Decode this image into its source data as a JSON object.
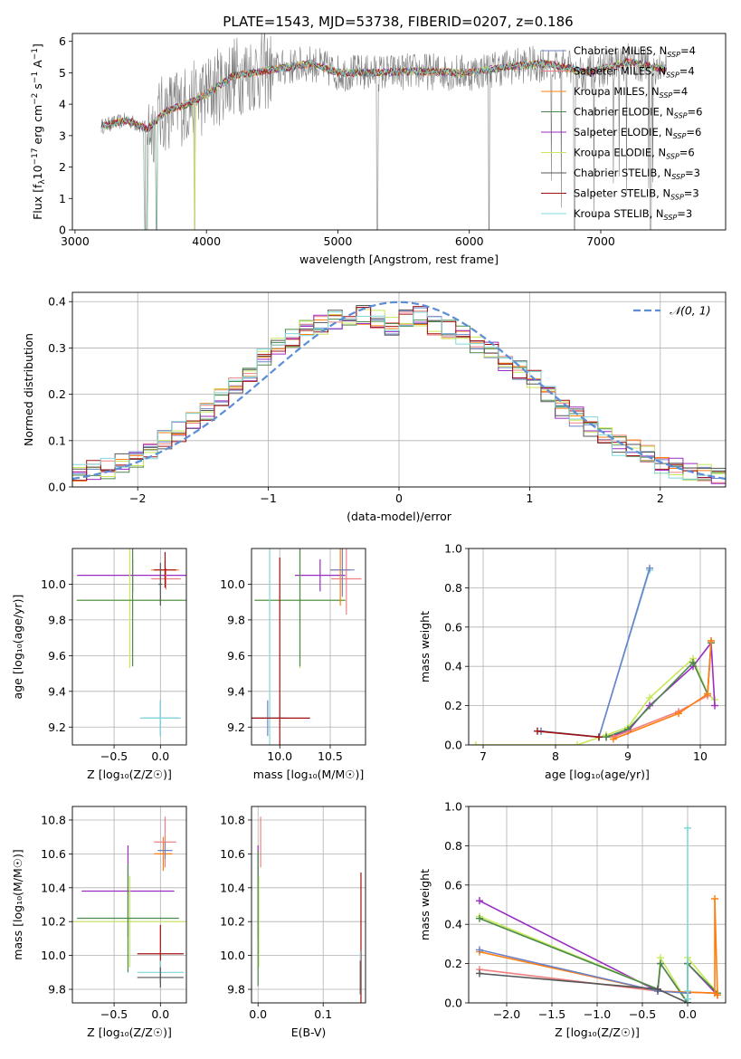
{
  "figure_title": "PLATE=1543, MJD=53738, FIBERID=0207, z=0.186",
  "colors": {
    "chabrier_miles": "#6b82c8",
    "salpeter_miles": "#f08080",
    "kroupa_miles": "#ff7f0e",
    "chabrier_elodie": "#4a8a4a",
    "salpeter_elodie": "#9a2cc4",
    "kroupa_elodie": "#c8e85a",
    "chabrier_stelib": "#555555",
    "salpeter_stelib": "#a01010",
    "kroupa_stelib": "#80d8d8",
    "data_spectrum": "#808080",
    "gaussian": "#5b8dd9"
  },
  "chart_data": [
    {
      "type": "line",
      "id": "spectrum",
      "title": "PLATE=1543, MJD=53738, FIBERID=0207, z=0.186",
      "xlabel": "wavelength [Angstrom, rest frame]",
      "ylabel_parts": [
        "Flux [f",
        "λ",
        "10",
        "−17",
        " erg cm",
        "−2",
        " s",
        "−1",
        " A",
        "−1",
        "]"
      ],
      "xlim": [
        2980,
        7950
      ],
      "ylim": [
        0,
        6.25
      ],
      "xticks": [
        3000,
        4000,
        5000,
        6000,
        7000
      ],
      "yticks": [
        0,
        1,
        2,
        3,
        4,
        5,
        6
      ],
      "grid": false,
      "legend_position": "upper-right",
      "series": [
        {
          "label": "Chabrier MILES, N",
          "sub": "SSP",
          "suffix": "=4",
          "color_key": "chabrier_miles"
        },
        {
          "label": "Salpeter MILES, N",
          "sub": "SSP",
          "suffix": "=4",
          "color_key": "salpeter_miles"
        },
        {
          "label": "Kroupa MILES, N",
          "sub": "SSP",
          "suffix": "=4",
          "color_key": "kroupa_miles"
        },
        {
          "label": "Chabrier ELODIE, N",
          "sub": "SSP",
          "suffix": "=6",
          "color_key": "chabrier_elodie"
        },
        {
          "label": "Salpeter ELODIE, N",
          "sub": "SSP",
          "suffix": "=6",
          "color_key": "salpeter_elodie"
        },
        {
          "label": "Kroupa ELODIE, N",
          "sub": "SSP",
          "suffix": "=6",
          "color_key": "kroupa_elodie"
        },
        {
          "label": "Chabrier STELIB, N",
          "sub": "SSP",
          "suffix": "=3",
          "color_key": "chabrier_stelib"
        },
        {
          "label": "Salpeter STELIB, N",
          "sub": "SSP",
          "suffix": "=3",
          "color_key": "salpeter_stelib"
        },
        {
          "label": "Kroupa STELIB, N",
          "sub": "SSP",
          "suffix": "=3",
          "color_key": "kroupa_stelib"
        }
      ],
      "continuum": {
        "x": [
          3200,
          3400,
          3550,
          3700,
          3850,
          4000,
          4200,
          4500,
          4800,
          5000,
          5300,
          5600,
          6000,
          6300,
          6600,
          6900,
          7200,
          7500
        ],
        "y": [
          3.3,
          3.5,
          3.2,
          3.8,
          4.0,
          4.3,
          4.9,
          5.1,
          5.3,
          5.0,
          5.0,
          5.05,
          5.0,
          5.2,
          5.3,
          5.0,
          5.35,
          5.1
        ]
      },
      "dips": [
        {
          "x": 3540,
          "y": 0
        },
        {
          "x": 3620,
          "y": 0
        },
        {
          "x": 3910,
          "y": 0
        },
        {
          "x": 5300,
          "y": 0
        },
        {
          "x": 6150,
          "y": 0
        },
        {
          "x": 6800,
          "y": 0
        },
        {
          "x": 7380,
          "y": 0
        }
      ]
    },
    {
      "type": "line",
      "id": "residuals",
      "xlabel": "(data-model)/error",
      "ylabel": "Normed distribution",
      "xlim": [
        -2.5,
        2.5
      ],
      "ylim": [
        0,
        0.42
      ],
      "xticks": [
        -2,
        -1,
        0,
        1,
        2
      ],
      "yticks": [
        0.0,
        0.1,
        0.2,
        0.3,
        0.4
      ],
      "grid": true,
      "legend": "𝒩(0, 1)",
      "legend_position": "upper-right",
      "hist_base": [
        0.03,
        0.035,
        0.04,
        0.05,
        0.06,
        0.08,
        0.1,
        0.12,
        0.14,
        0.16,
        0.19,
        0.22,
        0.25,
        0.28,
        0.3,
        0.32,
        0.34,
        0.35,
        0.36,
        0.36,
        0.37,
        0.36,
        0.35,
        0.36,
        0.37,
        0.35,
        0.34,
        0.33,
        0.31,
        0.29,
        0.27,
        0.25,
        0.23,
        0.2,
        0.17,
        0.15,
        0.13,
        0.11,
        0.09,
        0.08,
        0.07,
        0.05,
        0.04,
        0.03,
        0.03,
        0.02
      ],
      "hist_range": [
        -2.5,
        2.5
      ]
    },
    {
      "type": "scatter",
      "id": "age_vs_Z",
      "xlabel": "Z [log₁₀(Z/Z☉)]",
      "ylabel": "age  [log₁₀(age/yr)]",
      "xlim": [
        -0.95,
        0.28
      ],
      "ylim": [
        9.1,
        10.2
      ],
      "xticks": [
        -0.5,
        0.0
      ],
      "yticks": [
        9.2,
        9.4,
        9.6,
        9.8,
        10.0
      ],
      "grid": true,
      "errorbars": [
        {
          "x": -0.3,
          "y": 10.05,
          "xerr": 0.6,
          "yerr": 0.09,
          "color_key": "salpeter_elodie"
        },
        {
          "x": -0.33,
          "y": 9.91,
          "xerr": 0.58,
          "yerr": 0.38,
          "color_key": "kroupa_elodie"
        },
        {
          "x": -0.3,
          "y": 9.91,
          "xerr": 0.6,
          "yerr": 0.37,
          "color_key": "chabrier_elodie"
        },
        {
          "x": 0.0,
          "y": 9.25,
          "xerr": 0.2,
          "yerr": 0.1,
          "color_key": "chabrier_miles"
        },
        {
          "x": 0.0,
          "y": 9.25,
          "xerr": 0.22,
          "yerr": 0.1,
          "color_key": "kroupa_stelib"
        },
        {
          "x": 0.05,
          "y": 10.08,
          "xerr": 0.15,
          "yerr": 0.05,
          "color_key": "kroupa_miles"
        },
        {
          "x": 0.06,
          "y": 10.03,
          "xerr": 0.16,
          "yerr": 0.06,
          "color_key": "salpeter_miles"
        },
        {
          "x": 0.05,
          "y": 10.08,
          "xerr": 0.12,
          "yerr": 0.1,
          "color_key": "salpeter_stelib"
        },
        {
          "x": 0.0,
          "y": 10.0,
          "xerr": 0.02,
          "yerr": 0.12,
          "color_key": "chabrier_stelib"
        }
      ]
    },
    {
      "type": "scatter",
      "id": "age_vs_mass",
      "xlabel": "mass [log₁₀(M/M☉)]",
      "ylabel": "",
      "xlim": [
        9.72,
        10.85
      ],
      "ylim": [
        9.1,
        10.2
      ],
      "xticks": [
        10.0,
        10.5
      ],
      "yticks": [
        9.2,
        9.4,
        9.6,
        9.8,
        10.0
      ],
      "grid": true,
      "errorbars": [
        {
          "x": 10.4,
          "y": 10.05,
          "xerr": 0.25,
          "yerr": 0.09,
          "color_key": "salpeter_elodie"
        },
        {
          "x": 10.2,
          "y": 9.91,
          "xerr": 0.45,
          "yerr": 0.38,
          "color_key": "kroupa_elodie"
        },
        {
          "x": 10.2,
          "y": 9.91,
          "xerr": 0.45,
          "yerr": 0.37,
          "color_key": "chabrier_elodie"
        },
        {
          "x": 9.88,
          "y": 9.25,
          "xerr": 0.15,
          "yerr": 0.1,
          "color_key": "chabrier_miles"
        },
        {
          "x": 9.9,
          "y": 9.25,
          "xerr": 0.18,
          "yerr": 1.0,
          "color_key": "kroupa_stelib"
        },
        {
          "x": 10.0,
          "y": 9.25,
          "xerr": 0.3,
          "yerr": 0.9,
          "color_key": "salpeter_stelib"
        },
        {
          "x": 10.6,
          "y": 10.08,
          "xerr": 0.1,
          "yerr": 0.2,
          "color_key": "kroupa_miles"
        },
        {
          "x": 10.66,
          "y": 10.03,
          "xerr": 0.15,
          "yerr": 0.2,
          "color_key": "salpeter_miles"
        },
        {
          "x": 10.62,
          "y": 10.08,
          "xerr": 0.12,
          "yerr": 0.15,
          "color_key": "chabrier_miles"
        }
      ]
    },
    {
      "type": "line",
      "id": "weight_vs_age",
      "xlabel": "age  [log₁₀(age/yr)]",
      "ylabel": "mass weight",
      "xlim": [
        6.8,
        10.35
      ],
      "ylim": [
        0,
        1
      ],
      "xticks": [
        7,
        8,
        9,
        10
      ],
      "yticks": [
        0.0,
        0.2,
        0.4,
        0.6,
        0.8,
        1.0
      ],
      "grid": true,
      "series": [
        {
          "color_key": "kroupa_elodie",
          "x": [
            6.9,
            8.3,
            8.7,
            9.0,
            9.3,
            9.9,
            10.1,
            10.2
          ],
          "y": [
            0.0,
            0.0,
            0.05,
            0.09,
            0.24,
            0.44,
            0.26,
            0.23
          ]
        },
        {
          "color_key": "salpeter_elodie",
          "x": [
            8.7,
            9.0,
            9.3,
            9.9,
            10.15,
            10.2
          ],
          "y": [
            0.04,
            0.07,
            0.2,
            0.4,
            0.52,
            0.2
          ]
        },
        {
          "color_key": "chabrier_elodie",
          "x": [
            8.7,
            9.0,
            9.9,
            10.1,
            10.15
          ],
          "y": [
            0.04,
            0.08,
            0.42,
            0.26,
            0.52
          ]
        },
        {
          "color_key": "kroupa_stelib",
          "x": [
            7.8,
            8.6,
            9.3
          ],
          "y": [
            0.07,
            0.04,
            0.89
          ]
        },
        {
          "color_key": "chabrier_miles",
          "x": [
            7.8,
            8.6,
            9.3
          ],
          "y": [
            0.07,
            0.04,
            0.9
          ]
        },
        {
          "color_key": "salpeter_stelib",
          "x": [
            7.75,
            8.6
          ],
          "y": [
            0.07,
            0.04
          ]
        },
        {
          "color_key": "salpeter_miles",
          "x": [
            8.8,
            9.7,
            10.1,
            10.15
          ],
          "y": [
            0.04,
            0.17,
            0.25,
            0.53
          ]
        },
        {
          "color_key": "kroupa_miles",
          "x": [
            8.8,
            9.7,
            10.1,
            10.15
          ],
          "y": [
            0.03,
            0.16,
            0.26,
            0.53
          ]
        }
      ]
    },
    {
      "type": "scatter",
      "id": "mass_vs_Z",
      "xlabel": "Z [log₁₀(Z/Z☉)]",
      "ylabel": "mass [log₁₀(M/M☉)]",
      "xlim": [
        -0.95,
        0.28
      ],
      "ylim": [
        9.72,
        10.88
      ],
      "xticks": [
        -0.5,
        0.0
      ],
      "yticks": [
        9.8,
        10.0,
        10.2,
        10.4,
        10.6,
        10.8
      ],
      "grid": true,
      "errorbars": [
        {
          "x": -0.35,
          "y": 10.38,
          "xerr": 0.5,
          "yerr": 0.27,
          "color_key": "salpeter_elodie"
        },
        {
          "x": -0.33,
          "y": 10.2,
          "xerr": 0.6,
          "yerr": 0.27,
          "color_key": "kroupa_elodie"
        },
        {
          "x": -0.35,
          "y": 10.22,
          "xerr": 0.55,
          "yerr": 0.32,
          "color_key": "chabrier_elodie"
        },
        {
          "x": 0.0,
          "y": 10.01,
          "xerr": 0.25,
          "yerr": 0.17,
          "color_key": "salpeter_stelib"
        },
        {
          "x": 0.0,
          "y": 9.9,
          "xerr": 0.25,
          "yerr": 0.07,
          "color_key": "kroupa_stelib"
        },
        {
          "x": 0.0,
          "y": 9.87,
          "xerr": 0.25,
          "yerr": 0.06,
          "color_key": "chabrier_stelib"
        },
        {
          "x": 0.03,
          "y": 10.6,
          "xerr": 0.1,
          "yerr": 0.1,
          "color_key": "kroupa_miles"
        },
        {
          "x": 0.05,
          "y": 10.67,
          "xerr": 0.12,
          "yerr": 0.15,
          "color_key": "salpeter_miles"
        },
        {
          "x": 0.05,
          "y": 10.62,
          "xerr": 0.08,
          "yerr": 0.05,
          "color_key": "chabrier_miles"
        }
      ]
    },
    {
      "type": "scatter",
      "id": "mass_vs_ebv",
      "xlabel": "E(B-V)",
      "ylabel": "",
      "xlim": [
        -0.01,
        0.165
      ],
      "ylim": [
        9.72,
        10.88
      ],
      "xticks": [
        0.0,
        0.1
      ],
      "yticks": [
        9.8,
        10.0,
        10.2,
        10.4,
        10.6,
        10.8
      ],
      "grid": true,
      "errorbars": [
        {
          "x": 0.0,
          "y": 10.38,
          "xerr": 0.0,
          "yerr": 0.27,
          "color_key": "salpeter_elodie"
        },
        {
          "x": 0.001,
          "y": 10.2,
          "xerr": 0.0,
          "yerr": 0.27,
          "color_key": "kroupa_elodie"
        },
        {
          "x": 0.0,
          "y": 10.22,
          "xerr": 0.0,
          "yerr": 0.4,
          "color_key": "chabrier_elodie"
        },
        {
          "x": 0.004,
          "y": 10.67,
          "xerr": 0.0,
          "yerr": 0.15,
          "color_key": "salpeter_miles"
        },
        {
          "x": 0.158,
          "y": 10.01,
          "xerr": 0.0,
          "yerr": 0.48,
          "color_key": "salpeter_stelib"
        },
        {
          "x": 0.157,
          "y": 9.9,
          "xerr": 0.0,
          "yerr": 0.13,
          "color_key": "kroupa_stelib"
        },
        {
          "x": 0.157,
          "y": 9.87,
          "xerr": 0.0,
          "yerr": 0.1,
          "color_key": "chabrier_stelib"
        }
      ]
    },
    {
      "type": "line",
      "id": "weight_vs_Z",
      "xlabel": "Z [log₁₀(Z/Z☉)]",
      "ylabel": "mass weight",
      "xlim": [
        -2.42,
        0.42
      ],
      "ylim": [
        0,
        1
      ],
      "xticks": [
        -2.0,
        -1.5,
        -1.0,
        -0.5,
        0.0
      ],
      "yticks": [
        0.0,
        0.2,
        0.4,
        0.6,
        0.8,
        1.0
      ],
      "grid": true,
      "series": [
        {
          "color_key": "salpeter_elodie",
          "x": [
            -2.3,
            -0.33,
            -0.3,
            0.0,
            0.0,
            0.33
          ],
          "y": [
            0.52,
            0.06,
            0.2,
            0.0,
            0.2,
            0.04
          ]
        },
        {
          "color_key": "kroupa_elodie",
          "x": [
            -2.3,
            -0.33,
            -0.3,
            0.0,
            0.0,
            0.33
          ],
          "y": [
            0.44,
            0.07,
            0.23,
            0.0,
            0.23,
            0.05
          ]
        },
        {
          "color_key": "chabrier_elodie",
          "x": [
            -2.3,
            -0.33,
            -0.3,
            0.0,
            0.0,
            0.33
          ],
          "y": [
            0.43,
            0.07,
            0.2,
            0.0,
            0.2,
            0.05
          ]
        },
        {
          "color_key": "salpeter_miles",
          "x": [
            -2.3,
            -0.33,
            0.3,
            0.33
          ],
          "y": [
            0.17,
            0.06,
            0.05,
            0.04
          ]
        },
        {
          "color_key": "kroupa_miles",
          "x": [
            -2.3,
            -0.33,
            0.3,
            0.3,
            0.33
          ],
          "y": [
            0.26,
            0.06,
            0.05,
            0.53,
            0.04
          ]
        },
        {
          "color_key": "chabrier_miles",
          "x": [
            -2.3,
            -0.33,
            0.0
          ],
          "y": [
            0.27,
            0.06,
            0.05
          ]
        },
        {
          "color_key": "chabrier_stelib",
          "x": [
            -2.3,
            -0.33,
            0.0
          ],
          "y": [
            0.15,
            0.07,
            0.0
          ]
        },
        {
          "color_key": "kroupa_stelib",
          "x": [
            0.0,
            0.0,
            0.0
          ],
          "y": [
            0.06,
            0.89,
            0.02
          ]
        }
      ]
    }
  ]
}
